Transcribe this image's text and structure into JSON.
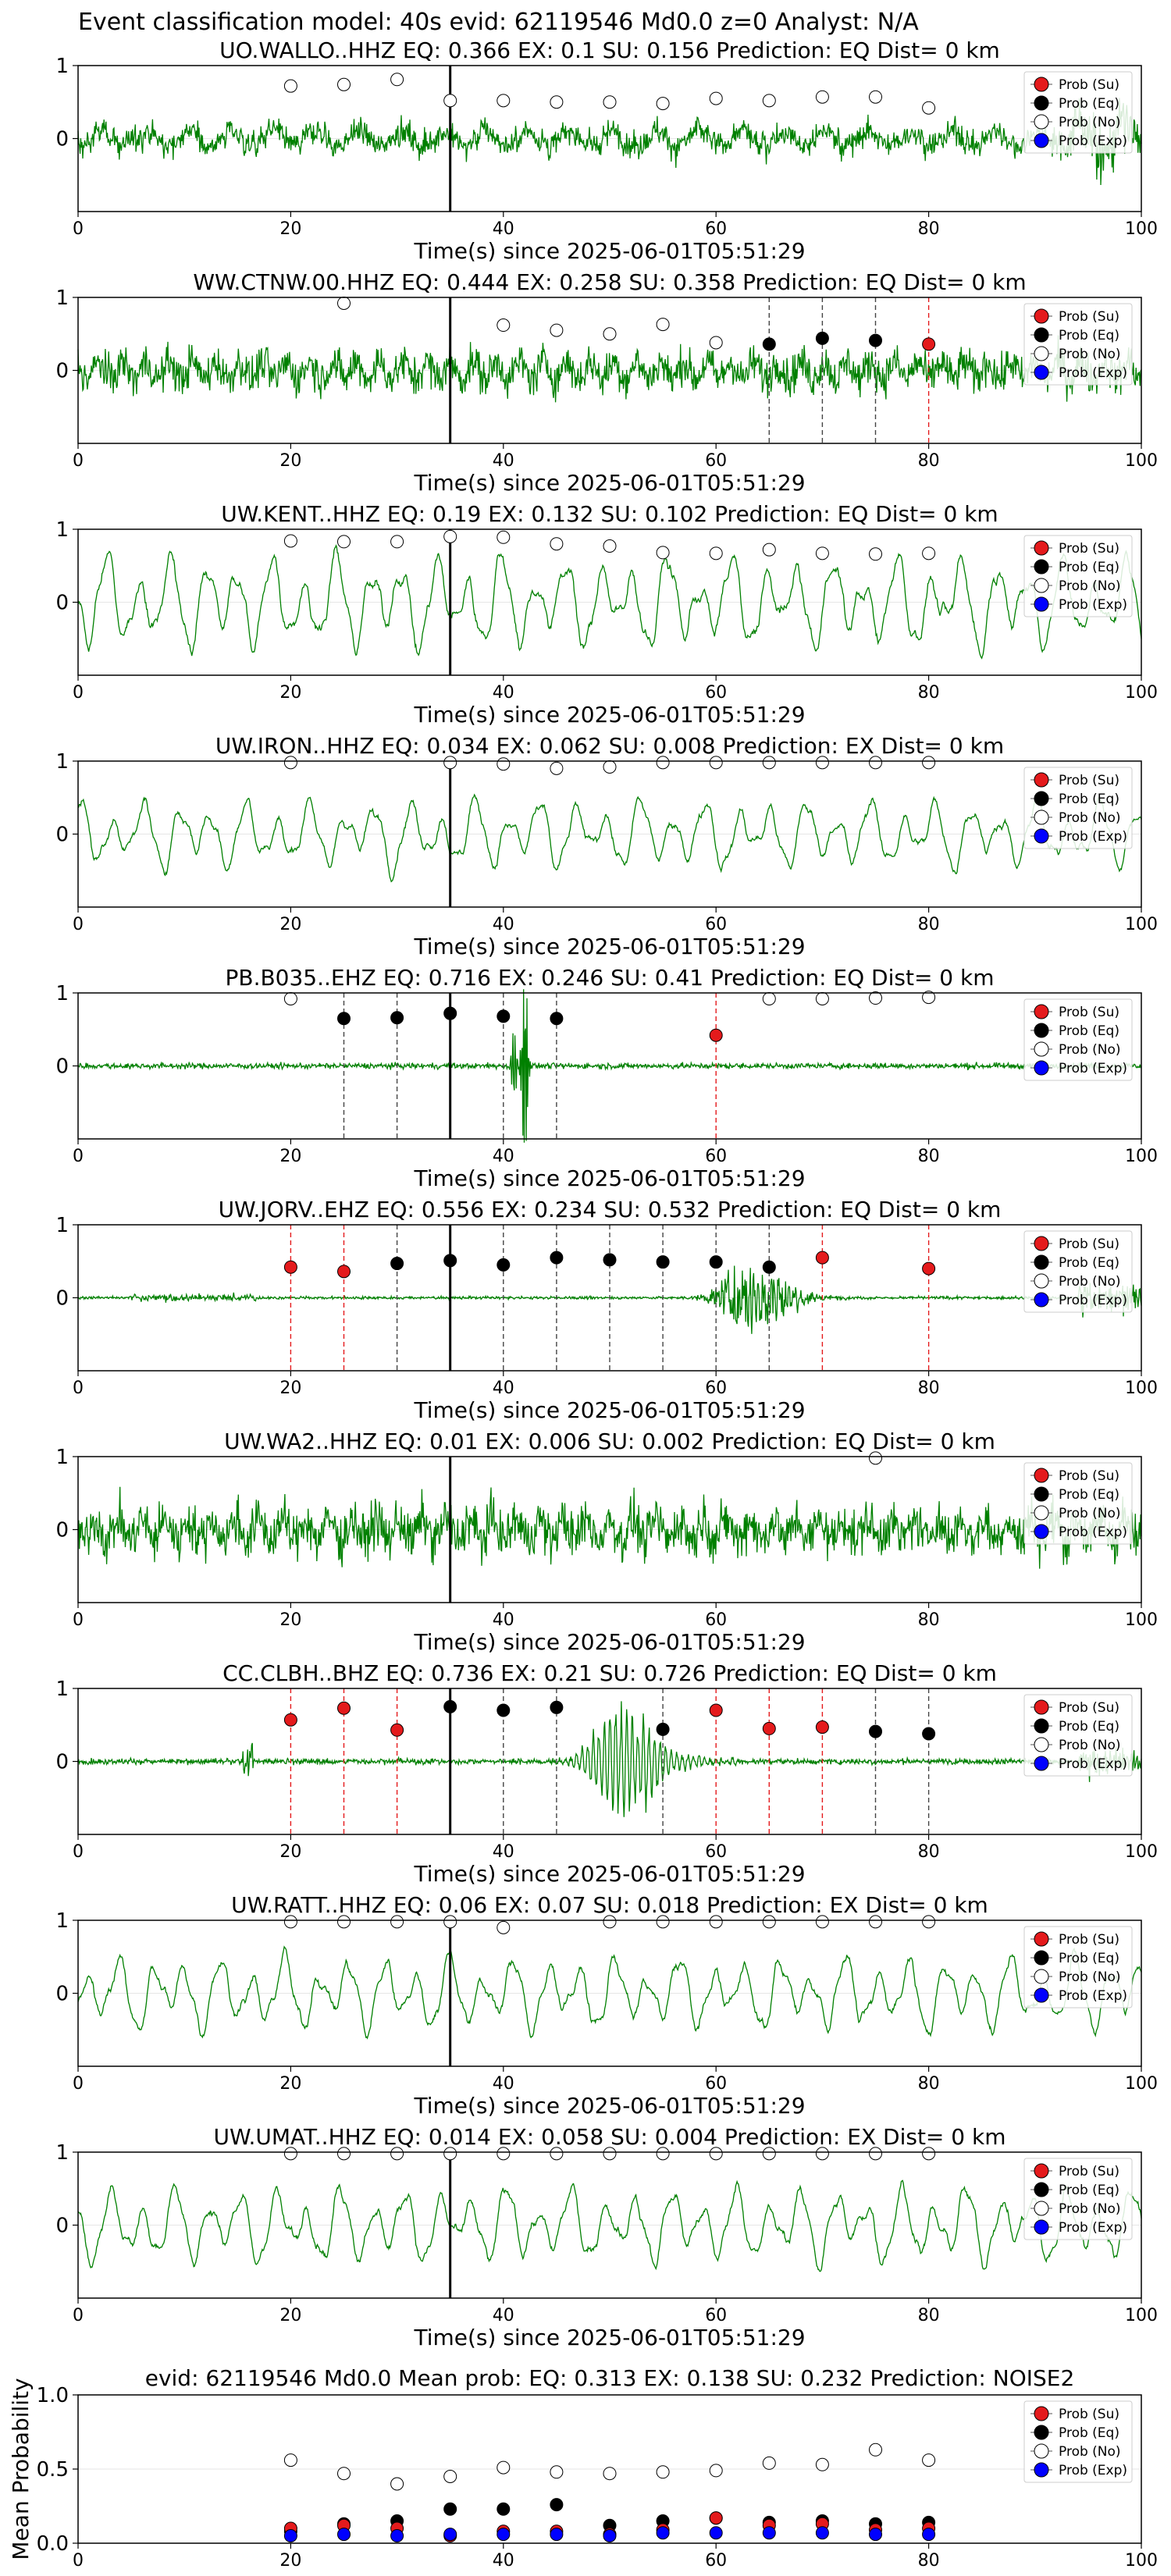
{
  "figure": {
    "suptitle": "Event classification model: 40s evid: 62119546 Md0.0 z=0 Analyst: N/A",
    "xlabel": "Time(s) since 2025-06-01T05:51:29",
    "legend": [
      "Prob (Su)",
      "Prob (Eq)",
      "Prob (No)",
      "Prob (Exp)"
    ],
    "colors": {
      "trace": "#008000",
      "su": "#e41a1c",
      "eq": "#000000",
      "no": "#ffffff",
      "exp": "#0000ff",
      "event_line": "#000000"
    }
  },
  "chart_data": [
    {
      "type": "line",
      "trace": "waveform",
      "title": "UO.WALLO..HHZ   EQ: 0.366  EX: 0.1  SU: 0.156   Prediction: EQ    Dist= 0 km",
      "xlim": [
        0,
        100
      ],
      "ylim": [
        -1,
        1
      ],
      "xticks": [
        0,
        20,
        40,
        60,
        80,
        100
      ],
      "yticks": [
        0,
        1
      ],
      "amplitude": 0.35,
      "wave_kind": "mixed",
      "event_time": 35,
      "dashed_lines": [],
      "points": [
        {
          "t": 20,
          "v": 0.72,
          "cls": "no"
        },
        {
          "t": 25,
          "v": 0.74,
          "cls": "no"
        },
        {
          "t": 30,
          "v": 0.81,
          "cls": "no"
        },
        {
          "t": 35,
          "v": 0.52,
          "cls": "no"
        },
        {
          "t": 40,
          "v": 0.52,
          "cls": "no"
        },
        {
          "t": 45,
          "v": 0.5,
          "cls": "no"
        },
        {
          "t": 50,
          "v": 0.5,
          "cls": "no"
        },
        {
          "t": 55,
          "v": 0.48,
          "cls": "no"
        },
        {
          "t": 60,
          "v": 0.55,
          "cls": "no"
        },
        {
          "t": 65,
          "v": 0.52,
          "cls": "no"
        },
        {
          "t": 70,
          "v": 0.57,
          "cls": "no"
        },
        {
          "t": 75,
          "v": 0.57,
          "cls": "no"
        },
        {
          "t": 80,
          "v": 0.42,
          "cls": "no"
        }
      ]
    },
    {
      "type": "line",
      "trace": "waveform",
      "title": "WW.CTNW.00.HHZ   EQ: 0.444  EX: 0.258  SU: 0.358    Prediction: EQ    Dist= 0 km",
      "xlim": [
        0,
        100
      ],
      "ylim": [
        -1,
        1
      ],
      "xticks": [
        0,
        20,
        40,
        60,
        80,
        100
      ],
      "yticks": [
        0,
        1
      ],
      "amplitude": 0.45,
      "wave_kind": "noisy",
      "event_time": 35,
      "dashed_lines": [
        {
          "t": 65,
          "cls": "eq"
        },
        {
          "t": 70,
          "cls": "eq"
        },
        {
          "t": 75,
          "cls": "eq"
        },
        {
          "t": 80,
          "cls": "su"
        }
      ],
      "points": [
        {
          "t": 25,
          "v": 0.92,
          "cls": "no"
        },
        {
          "t": 40,
          "v": 0.62,
          "cls": "no"
        },
        {
          "t": 45,
          "v": 0.55,
          "cls": "no"
        },
        {
          "t": 50,
          "v": 0.5,
          "cls": "no"
        },
        {
          "t": 55,
          "v": 0.63,
          "cls": "no"
        },
        {
          "t": 60,
          "v": 0.38,
          "cls": "no"
        },
        {
          "t": 65,
          "v": 0.36,
          "cls": "eq"
        },
        {
          "t": 70,
          "v": 0.44,
          "cls": "eq"
        },
        {
          "t": 75,
          "v": 0.41,
          "cls": "eq"
        },
        {
          "t": 80,
          "v": 0.36,
          "cls": "su"
        }
      ]
    },
    {
      "type": "line",
      "trace": "waveform",
      "title": "UW.KENT..HHZ   EQ: 0.19  EX: 0.132  SU: 0.102   Prediction: EQ    Dist= 0 km",
      "xlim": [
        0,
        100
      ],
      "ylim": [
        -1,
        1
      ],
      "xticks": [
        0,
        20,
        40,
        60,
        80,
        100
      ],
      "yticks": [
        0,
        1
      ],
      "amplitude": 0.75,
      "wave_kind": "smooth",
      "event_time": 35,
      "dashed_lines": [],
      "points": [
        {
          "t": 20,
          "v": 0.84,
          "cls": "no"
        },
        {
          "t": 25,
          "v": 0.83,
          "cls": "no"
        },
        {
          "t": 30,
          "v": 0.83,
          "cls": "no"
        },
        {
          "t": 35,
          "v": 0.9,
          "cls": "no"
        },
        {
          "t": 40,
          "v": 0.89,
          "cls": "no"
        },
        {
          "t": 45,
          "v": 0.8,
          "cls": "no"
        },
        {
          "t": 50,
          "v": 0.77,
          "cls": "no"
        },
        {
          "t": 55,
          "v": 0.68,
          "cls": "no"
        },
        {
          "t": 60,
          "v": 0.67,
          "cls": "no"
        },
        {
          "t": 65,
          "v": 0.72,
          "cls": "no"
        },
        {
          "t": 70,
          "v": 0.67,
          "cls": "no"
        },
        {
          "t": 75,
          "v": 0.66,
          "cls": "no"
        },
        {
          "t": 80,
          "v": 0.67,
          "cls": "no"
        }
      ]
    },
    {
      "type": "line",
      "trace": "waveform",
      "title": "UW.IRON..HHZ   EQ: 0.034  EX: 0.062  SU: 0.008   Prediction: EX    Dist= 0 km",
      "xlim": [
        0,
        100
      ],
      "ylim": [
        -1,
        1
      ],
      "xticks": [
        0,
        20,
        40,
        60,
        80,
        100
      ],
      "yticks": [
        0,
        1
      ],
      "amplitude": 0.55,
      "wave_kind": "smooth",
      "event_time": 35,
      "dashed_lines": [],
      "points": [
        {
          "t": 20,
          "v": 0.98,
          "cls": "no"
        },
        {
          "t": 35,
          "v": 0.98,
          "cls": "no"
        },
        {
          "t": 40,
          "v": 0.96,
          "cls": "no"
        },
        {
          "t": 45,
          "v": 0.9,
          "cls": "no"
        },
        {
          "t": 50,
          "v": 0.92,
          "cls": "no"
        },
        {
          "t": 55,
          "v": 0.98,
          "cls": "no"
        },
        {
          "t": 60,
          "v": 0.98,
          "cls": "no"
        },
        {
          "t": 65,
          "v": 0.98,
          "cls": "no"
        },
        {
          "t": 70,
          "v": 0.98,
          "cls": "no"
        },
        {
          "t": 75,
          "v": 0.98,
          "cls": "no"
        },
        {
          "t": 80,
          "v": 0.98,
          "cls": "no"
        }
      ]
    },
    {
      "type": "line",
      "trace": "waveform",
      "title": "PB.B035..EHZ   EQ: 0.716  EX: 0.246  SU: 0.41   Prediction: EQ    Dist= 0 km",
      "xlim": [
        0,
        100
      ],
      "ylim": [
        -1,
        1
      ],
      "xticks": [
        0,
        20,
        40,
        60,
        80,
        100
      ],
      "yticks": [
        0,
        1
      ],
      "amplitude": 0.04,
      "wave_kind": "quiet_spike",
      "event_time": 35,
      "dashed_lines": [
        {
          "t": 25,
          "cls": "eq"
        },
        {
          "t": 30,
          "cls": "eq"
        },
        {
          "t": 40,
          "cls": "eq"
        },
        {
          "t": 45,
          "cls": "eq"
        },
        {
          "t": 60,
          "cls": "su"
        }
      ],
      "points": [
        {
          "t": 20,
          "v": 0.92,
          "cls": "no"
        },
        {
          "t": 25,
          "v": 0.65,
          "cls": "eq"
        },
        {
          "t": 30,
          "v": 0.66,
          "cls": "eq"
        },
        {
          "t": 35,
          "v": 0.72,
          "cls": "eq"
        },
        {
          "t": 40,
          "v": 0.68,
          "cls": "eq"
        },
        {
          "t": 45,
          "v": 0.65,
          "cls": "eq"
        },
        {
          "t": 60,
          "v": 0.42,
          "cls": "su"
        },
        {
          "t": 65,
          "v": 0.92,
          "cls": "no"
        },
        {
          "t": 70,
          "v": 0.92,
          "cls": "no"
        },
        {
          "t": 75,
          "v": 0.93,
          "cls": "no"
        },
        {
          "t": 80,
          "v": 0.94,
          "cls": "no"
        }
      ]
    },
    {
      "type": "line",
      "trace": "waveform",
      "title": "UW.JORV..EHZ   EQ: 0.556  EX: 0.234  SU: 0.532   Prediction: EQ    Dist= 0 km",
      "xlim": [
        0,
        100
      ],
      "ylim": [
        -1,
        1
      ],
      "xticks": [
        0,
        20,
        40,
        60,
        80,
        100
      ],
      "yticks": [
        0,
        1
      ],
      "amplitude": 0.02,
      "wave_kind": "burst",
      "event_time": 35,
      "dashed_lines": [
        {
          "t": 20,
          "cls": "su"
        },
        {
          "t": 25,
          "cls": "su"
        },
        {
          "t": 30,
          "cls": "eq"
        },
        {
          "t": 40,
          "cls": "eq"
        },
        {
          "t": 45,
          "cls": "eq"
        },
        {
          "t": 50,
          "cls": "eq"
        },
        {
          "t": 55,
          "cls": "eq"
        },
        {
          "t": 60,
          "cls": "eq"
        },
        {
          "t": 65,
          "cls": "eq"
        },
        {
          "t": 70,
          "cls": "su"
        },
        {
          "t": 80,
          "cls": "su"
        }
      ],
      "points": [
        {
          "t": 20,
          "v": 0.42,
          "cls": "su"
        },
        {
          "t": 25,
          "v": 0.36,
          "cls": "su"
        },
        {
          "t": 30,
          "v": 0.47,
          "cls": "eq"
        },
        {
          "t": 35,
          "v": 0.51,
          "cls": "eq"
        },
        {
          "t": 40,
          "v": 0.45,
          "cls": "eq"
        },
        {
          "t": 45,
          "v": 0.55,
          "cls": "eq"
        },
        {
          "t": 50,
          "v": 0.52,
          "cls": "eq"
        },
        {
          "t": 55,
          "v": 0.49,
          "cls": "eq"
        },
        {
          "t": 60,
          "v": 0.49,
          "cls": "eq"
        },
        {
          "t": 65,
          "v": 0.42,
          "cls": "eq"
        },
        {
          "t": 70,
          "v": 0.55,
          "cls": "su"
        },
        {
          "t": 80,
          "v": 0.4,
          "cls": "su"
        }
      ]
    },
    {
      "type": "line",
      "trace": "waveform",
      "title": "UW.WA2..HHZ   EQ: 0.01  EX: 0.006  SU: 0.002   Prediction: EQ    Dist= 0 km",
      "xlim": [
        0,
        100
      ],
      "ylim": [
        -1,
        1
      ],
      "xticks": [
        0,
        20,
        40,
        60,
        80,
        100
      ],
      "yticks": [
        0,
        1
      ],
      "amplitude": 0.55,
      "wave_kind": "noisy",
      "event_time": 35,
      "dashed_lines": [],
      "points": [
        {
          "t": 75,
          "v": 0.98,
          "cls": "no"
        }
      ]
    },
    {
      "type": "line",
      "trace": "waveform",
      "title": "CC.CLBH..BHZ   EQ: 0.736  EX: 0.21  SU: 0.726   Prediction: EQ    Dist= 0 km",
      "xlim": [
        0,
        100
      ],
      "ylim": [
        -1,
        1
      ],
      "xticks": [
        0,
        20,
        40,
        60,
        80,
        100
      ],
      "yticks": [
        0,
        1
      ],
      "amplitude": 0.04,
      "wave_kind": "burst_mid",
      "event_time": 35,
      "dashed_lines": [
        {
          "t": 20,
          "cls": "su"
        },
        {
          "t": 25,
          "cls": "su"
        },
        {
          "t": 30,
          "cls": "su"
        },
        {
          "t": 40,
          "cls": "eq"
        },
        {
          "t": 45,
          "cls": "eq"
        },
        {
          "t": 55,
          "cls": "eq"
        },
        {
          "t": 60,
          "cls": "su"
        },
        {
          "t": 65,
          "cls": "su"
        },
        {
          "t": 70,
          "cls": "su"
        },
        {
          "t": 75,
          "cls": "eq"
        },
        {
          "t": 80,
          "cls": "eq"
        }
      ],
      "points": [
        {
          "t": 20,
          "v": 0.57,
          "cls": "su"
        },
        {
          "t": 25,
          "v": 0.73,
          "cls": "su"
        },
        {
          "t": 30,
          "v": 0.43,
          "cls": "su"
        },
        {
          "t": 35,
          "v": 0.75,
          "cls": "eq"
        },
        {
          "t": 40,
          "v": 0.7,
          "cls": "eq"
        },
        {
          "t": 45,
          "v": 0.74,
          "cls": "eq"
        },
        {
          "t": 55,
          "v": 0.44,
          "cls": "eq"
        },
        {
          "t": 60,
          "v": 0.7,
          "cls": "su"
        },
        {
          "t": 65,
          "v": 0.45,
          "cls": "su"
        },
        {
          "t": 70,
          "v": 0.47,
          "cls": "su"
        },
        {
          "t": 75,
          "v": 0.41,
          "cls": "eq"
        },
        {
          "t": 80,
          "v": 0.38,
          "cls": "eq"
        }
      ]
    },
    {
      "type": "line",
      "trace": "waveform",
      "title": "UW.RATT..HHZ   EQ: 0.06  EX: 0.07  SU: 0.018   Prediction: EX    Dist= 0 km",
      "xlim": [
        0,
        100
      ],
      "ylim": [
        -1,
        1
      ],
      "xticks": [
        0,
        20,
        40,
        60,
        80,
        100
      ],
      "yticks": [
        0,
        1
      ],
      "amplitude": 0.6,
      "wave_kind": "smooth",
      "event_time": 35,
      "dashed_lines": [],
      "points": [
        {
          "t": 20,
          "v": 0.98,
          "cls": "no"
        },
        {
          "t": 25,
          "v": 0.98,
          "cls": "no"
        },
        {
          "t": 30,
          "v": 0.98,
          "cls": "no"
        },
        {
          "t": 35,
          "v": 0.98,
          "cls": "no"
        },
        {
          "t": 40,
          "v": 0.9,
          "cls": "no"
        },
        {
          "t": 50,
          "v": 0.98,
          "cls": "no"
        },
        {
          "t": 55,
          "v": 0.98,
          "cls": "no"
        },
        {
          "t": 60,
          "v": 0.98,
          "cls": "no"
        },
        {
          "t": 65,
          "v": 0.98,
          "cls": "no"
        },
        {
          "t": 70,
          "v": 0.98,
          "cls": "no"
        },
        {
          "t": 75,
          "v": 0.98,
          "cls": "no"
        },
        {
          "t": 80,
          "v": 0.98,
          "cls": "no"
        }
      ]
    },
    {
      "type": "line",
      "trace": "waveform",
      "title": "UW.UMAT..HHZ   EQ: 0.014  EX: 0.058  SU: 0.004   Prediction: EX    Dist= 0 km",
      "xlim": [
        0,
        100
      ],
      "ylim": [
        -1,
        1
      ],
      "xticks": [
        0,
        20,
        40,
        60,
        80,
        100
      ],
      "yticks": [
        0,
        1
      ],
      "amplitude": 0.6,
      "wave_kind": "smooth",
      "event_time": 35,
      "dashed_lines": [],
      "points": [
        {
          "t": 20,
          "v": 0.98,
          "cls": "no"
        },
        {
          "t": 25,
          "v": 0.98,
          "cls": "no"
        },
        {
          "t": 30,
          "v": 0.98,
          "cls": "no"
        },
        {
          "t": 35,
          "v": 0.98,
          "cls": "no"
        },
        {
          "t": 40,
          "v": 0.98,
          "cls": "no"
        },
        {
          "t": 45,
          "v": 0.98,
          "cls": "no"
        },
        {
          "t": 50,
          "v": 0.98,
          "cls": "no"
        },
        {
          "t": 55,
          "v": 0.98,
          "cls": "no"
        },
        {
          "t": 60,
          "v": 0.98,
          "cls": "no"
        },
        {
          "t": 65,
          "v": 0.98,
          "cls": "no"
        },
        {
          "t": 70,
          "v": 0.98,
          "cls": "no"
        },
        {
          "t": 75,
          "v": 0.98,
          "cls": "no"
        },
        {
          "t": 80,
          "v": 0.98,
          "cls": "no"
        }
      ]
    },
    {
      "type": "scatter",
      "trace": "mean",
      "title": "evid: 62119546  Md0.0   Mean prob:   EQ: 0.313  EX: 0.138  SU: 0.232   Prediction: NOISE2",
      "ylabel": "Mean Probability",
      "xlim": [
        0,
        100
      ],
      "ylim": [
        0,
        1
      ],
      "xticks": [
        0,
        20,
        40,
        60,
        80,
        100
      ],
      "yticks": [
        0,
        0.5,
        1.0
      ],
      "ytick_labels": [
        "0.0",
        "0.5",
        "1.0"
      ],
      "series": [
        {
          "name": "Prob (No)",
          "cls": "no",
          "x": [
            20,
            25,
            30,
            35,
            40,
            45,
            50,
            55,
            60,
            65,
            70,
            75,
            80
          ],
          "y": [
            0.56,
            0.47,
            0.4,
            0.45,
            0.51,
            0.48,
            0.47,
            0.48,
            0.49,
            0.54,
            0.53,
            0.63,
            0.56
          ]
        },
        {
          "name": "Prob (Eq)",
          "cls": "eq",
          "x": [
            20,
            25,
            30,
            35,
            40,
            45,
            50,
            55,
            60,
            65,
            70,
            75,
            80
          ],
          "y": [
            0.08,
            0.13,
            0.15,
            0.23,
            0.23,
            0.26,
            0.12,
            0.15,
            0.17,
            0.14,
            0.15,
            0.13,
            0.14
          ]
        },
        {
          "name": "Prob (Su)",
          "cls": "su",
          "x": [
            20,
            25,
            30,
            35,
            40,
            45,
            50,
            55,
            60,
            65,
            70,
            75,
            80
          ],
          "y": [
            0.1,
            0.12,
            0.1,
            0.05,
            0.08,
            0.08,
            0.06,
            0.09,
            0.17,
            0.12,
            0.13,
            0.09,
            0.1
          ]
        },
        {
          "name": "Prob (Exp)",
          "cls": "exp",
          "x": [
            20,
            25,
            30,
            35,
            40,
            45,
            50,
            55,
            60,
            65,
            70,
            75,
            80
          ],
          "y": [
            0.05,
            0.06,
            0.05,
            0.06,
            0.06,
            0.06,
            0.05,
            0.07,
            0.07,
            0.07,
            0.07,
            0.06,
            0.06
          ]
        }
      ]
    }
  ]
}
